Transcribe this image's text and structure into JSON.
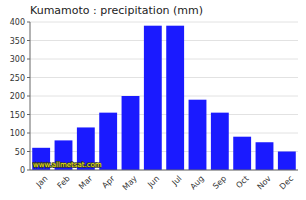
{
  "chart_data": {
    "type": "bar",
    "title": "Kumamoto : precipitation (mm)",
    "categories": [
      "Jan",
      "Feb",
      "Mar",
      "Apr",
      "May",
      "Jun",
      "Jul",
      "Aug",
      "Sep",
      "Oct",
      "Nov",
      "Dec"
    ],
    "values": [
      60,
      80,
      115,
      155,
      200,
      390,
      390,
      190,
      155,
      90,
      75,
      50
    ],
    "color": "#1a1aff",
    "ylim": [
      0,
      400
    ],
    "yticks": [
      0,
      50,
      100,
      150,
      200,
      250,
      300,
      350,
      400
    ],
    "grid": true,
    "annotations": [
      "www.allmetsat.com"
    ]
  }
}
